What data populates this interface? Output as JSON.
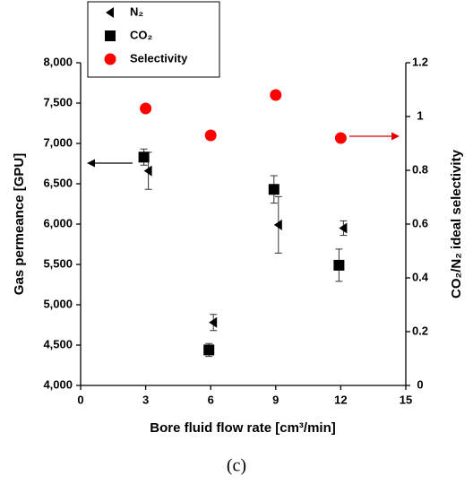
{
  "chart_data": {
    "type": "scatter",
    "xlabel": "Bore fluid flow rate [cm³/min]",
    "ylabel": "Gas permeance [GPU]",
    "y2label": "CO₂/N₂ ideal selectivity",
    "caption": "(c)",
    "x": [
      3,
      6,
      9,
      12
    ],
    "xlim": [
      0,
      15
    ],
    "xticks": [
      0,
      3,
      6,
      9,
      12,
      15
    ],
    "ylim": [
      4000,
      8000
    ],
    "yticks": [
      {
        "value": 4000,
        "label": "4,000"
      },
      {
        "value": 4500,
        "label": "4,500"
      },
      {
        "value": 5000,
        "label": "5,000"
      },
      {
        "value": 5500,
        "label": "5,500"
      },
      {
        "value": 6000,
        "label": "6,000"
      },
      {
        "value": 6500,
        "label": "6,500"
      },
      {
        "value": 7000,
        "label": "7,000"
      },
      {
        "value": 7500,
        "label": "7,500"
      },
      {
        "value": 8000,
        "label": "8,000"
      }
    ],
    "y2lim": [
      0,
      1.2
    ],
    "y2ticks": [
      0,
      0.2,
      0.4,
      0.6,
      0.8,
      1,
      1.2
    ],
    "series": [
      {
        "name": "N₂",
        "color": "#000000",
        "marker": "triangle-left",
        "values": [
          6660,
          4780,
          5990,
          5950
        ],
        "errors": [
          230,
          100,
          350,
          90
        ]
      },
      {
        "name": "CO₂",
        "color": "#000000",
        "marker": "square",
        "values": [
          6830,
          4440,
          6430,
          5490
        ],
        "errors": [
          100,
          80,
          170,
          200
        ]
      },
      {
        "name": "Selectivity",
        "color": "#ff0000",
        "marker": "circle",
        "axis": "y2",
        "values": [
          1.03,
          0.93,
          1.08,
          0.92
        ]
      }
    ]
  }
}
